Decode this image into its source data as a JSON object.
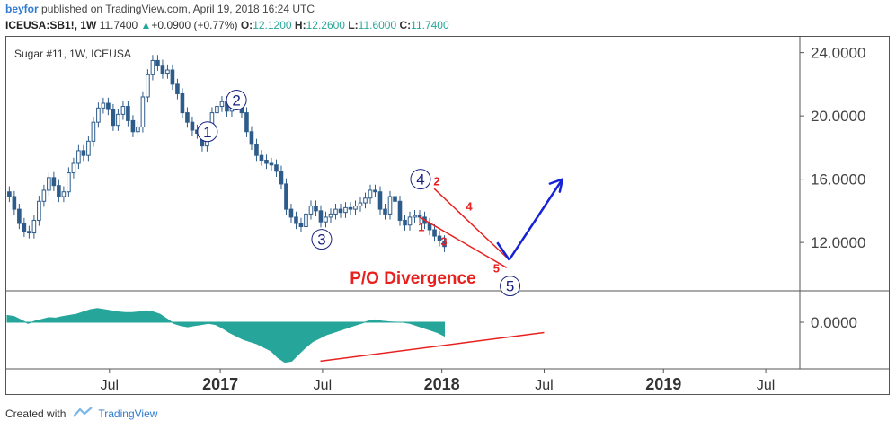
{
  "header": {
    "user": "beyfor",
    "published_text": "published on TradingView.com, April 19, 2018 16:24 UTC",
    "symbol": "ICEUSA:SB1!, 1W",
    "last": "11.7400",
    "up_arrow": "▲",
    "change": "+0.0900 (+0.77%)",
    "o_label": "O:",
    "o_val": "12.1200",
    "h_label": "H:",
    "h_val": "12.2600",
    "l_label": "L:",
    "l_val": "11.6000",
    "c_label": "C:",
    "c_val": "11.7400"
  },
  "footer": {
    "created_with": "Created with",
    "brand": "TradingView"
  },
  "colors": {
    "up": "#26a69a",
    "candle": "#2e5c8a",
    "osc": "#26a69a",
    "wave": "#1a237e",
    "annotation": "#e8211f",
    "arrow": "#1522d6"
  },
  "chart_data": {
    "type": "candlestick",
    "title": "Sugar #11, 1W, ICEUSA",
    "ylim": [
      9,
      25
    ],
    "y_ticks": [
      "24.0000",
      "20.0000",
      "16.0000",
      "12.0000"
    ],
    "y_tick_values": [
      24,
      20,
      16,
      12
    ],
    "osc_tick": "0.0000",
    "x_ticks": [
      {
        "label": "Jul",
        "bold": false,
        "w": 24
      },
      {
        "label": "2017",
        "bold": true,
        "w": 50
      },
      {
        "label": "Jul",
        "bold": false,
        "w": 74
      },
      {
        "label": "2018",
        "bold": true,
        "w": 102
      },
      {
        "label": "Jul",
        "bold": false,
        "w": 126
      },
      {
        "label": "2019",
        "bold": true,
        "w": 154
      },
      {
        "label": "Jul",
        "bold": false,
        "w": 178
      }
    ],
    "price": [
      14.9,
      14.1,
      13.2,
      12.7,
      12.6,
      13.4,
      14.6,
      15.3,
      16.1,
      15.6,
      14.9,
      15.2,
      16.4,
      17.0,
      17.8,
      17.5,
      18.4,
      19.6,
      20.5,
      20.8,
      20.4,
      19.4,
      20.1,
      20.6,
      19.7,
      19.0,
      19.3,
      21.2,
      22.6,
      23.5,
      23.2,
      22.7,
      22.9,
      22.0,
      21.4,
      20.2,
      19.6,
      19.1,
      18.9,
      18.1,
      19.2,
      20.2,
      20.6,
      20.9,
      20.3,
      21.2,
      20.9,
      20.2,
      19.0,
      18.2,
      17.5,
      17.2,
      17.0,
      16.9,
      16.5,
      15.7,
      14.1,
      13.6,
      13.2,
      13.0,
      13.8,
      14.3,
      14.0,
      13.3,
      13.6,
      13.8,
      14.1,
      13.9,
      14.2,
      14.1,
      14.3,
      14.5,
      14.8,
      15.3,
      15.2,
      14.1,
      13.8,
      14.9,
      14.6,
      13.4,
      13.1,
      13.6,
      13.7,
      13.6,
      13.2,
      12.8,
      12.4,
      12.1,
      11.74
    ],
    "osc": [
      0.3,
      0.25,
      0.1,
      -0.05,
      0.05,
      0.12,
      0.2,
      0.18,
      0.25,
      0.3,
      0.35,
      0.45,
      0.55,
      0.6,
      0.55,
      0.5,
      0.45,
      0.42,
      0.42,
      0.45,
      0.5,
      0.45,
      0.35,
      0.15,
      -0.05,
      -0.15,
      -0.2,
      -0.15,
      -0.1,
      -0.05,
      -0.1,
      -0.25,
      -0.45,
      -0.6,
      -0.75,
      -0.85,
      -0.95,
      -1.1,
      -1.25,
      -1.55,
      -1.75,
      -1.7,
      -1.4,
      -1.1,
      -0.85,
      -0.7,
      -0.55,
      -0.45,
      -0.35,
      -0.25,
      -0.15,
      -0.05,
      0.05,
      0.1,
      0.05,
      0.02,
      0.0,
      0.0,
      -0.05,
      -0.15,
      -0.25,
      -0.35,
      -0.45,
      -0.6
    ],
    "waves": [
      {
        "label": "1",
        "w": 47.0,
        "v": 19.0
      },
      {
        "label": "2",
        "w": 53.8,
        "v": 21.0
      },
      {
        "label": "3",
        "w": 73.8,
        "v": 12.2
      },
      {
        "label": "4",
        "w": 97.0,
        "v": 16.0
      },
      {
        "label": "5",
        "w": 118.0,
        "v": 9.25
      }
    ],
    "sub_waves": [
      {
        "label": "1",
        "w": 97.2,
        "v": 13.0
      },
      {
        "label": "2",
        "w": 100.8,
        "v": 15.9
      },
      {
        "label": "3",
        "w": 102.5,
        "v": 12.1
      },
      {
        "label": "4",
        "w": 108.4,
        "v": 14.3
      },
      {
        "label": "5",
        "w": 114.8,
        "v": 10.4
      }
    ],
    "annotation": "P/O Divergence"
  }
}
